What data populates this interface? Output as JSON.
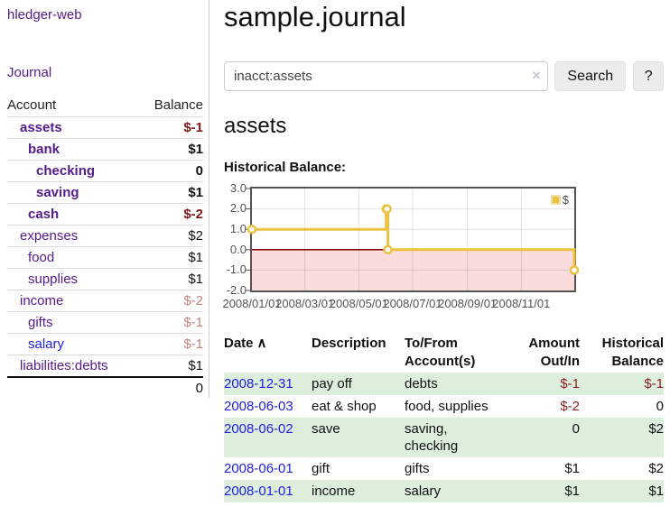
{
  "colors": {
    "accent_purple": "#551a8b",
    "link_blue": "#2121dd",
    "negative_strong": "#7d1616",
    "negative_table": "#8b1e1e",
    "negative_soft": "#c28383",
    "row_highlight": "#ddeedd",
    "chart_line": "#edc240",
    "chart_negative_fill": "#fbdcdc",
    "chart_zero_line": "#8b0000",
    "chart_border": "#545454",
    "chart_text": "#545454",
    "grid_line": "#dedede"
  },
  "sidebar": {
    "app_title": "hledger-web",
    "journal_link": "Journal",
    "accounts_table": {
      "headers": {
        "account": "Account",
        "balance": "Balance"
      },
      "rows": [
        {
          "account": "assets",
          "balance": "$-1",
          "indent": 1,
          "bold": true,
          "negative": true
        },
        {
          "account": "bank",
          "balance": "$1",
          "indent": 2,
          "bold": true,
          "negative": false
        },
        {
          "account": "checking",
          "balance": "0",
          "indent": 3,
          "bold": true,
          "negative": false
        },
        {
          "account": "saving",
          "balance": "$1",
          "indent": 3,
          "bold": true,
          "negative": false
        },
        {
          "account": "cash",
          "balance": "$-2",
          "indent": 2,
          "bold": true,
          "negative": true
        },
        {
          "account": "expenses",
          "balance": "$2",
          "indent": 1,
          "bold": false,
          "negative": false
        },
        {
          "account": "food",
          "balance": "$1",
          "indent": 2,
          "bold": false,
          "negative": false
        },
        {
          "account": "supplies",
          "balance": "$1",
          "indent": 2,
          "bold": false,
          "negative": false
        },
        {
          "account": "income",
          "balance": "$-2",
          "indent": 1,
          "bold": false,
          "negative": true
        },
        {
          "account": "gifts",
          "balance": "$-1",
          "indent": 2,
          "bold": false,
          "negative": true
        },
        {
          "account": "salary",
          "balance": "$-1",
          "indent": 2,
          "bold": false,
          "negative": true,
          "link_color": "blue"
        },
        {
          "account": "liabilities:debts",
          "balance": "$1",
          "indent": 1,
          "bold": false,
          "negative": false
        }
      ],
      "total": "0"
    }
  },
  "header": {
    "title": "sample.journal"
  },
  "search": {
    "value": "inacct:assets",
    "clear_icon": "×",
    "button_label": "Search",
    "help_label": "?"
  },
  "account_page": {
    "heading": "assets",
    "chart_title": "Historical Balance:"
  },
  "chart_data": {
    "type": "line",
    "step": true,
    "title": "Historical Balance:",
    "xlim": [
      "2008-01-01",
      "2008-12-31"
    ],
    "ylim": [
      -2,
      3
    ],
    "grid": true,
    "legend": {
      "label": "$",
      "position": "top-right"
    },
    "negative_region": {
      "from": 0,
      "to": -2
    },
    "series": [
      {
        "name": "$",
        "points": [
          {
            "x": "2008-01-01",
            "y": 1
          },
          {
            "x": "2008-06-01",
            "y": 2
          },
          {
            "x": "2008-06-02",
            "y": 2
          },
          {
            "x": "2008-06-03",
            "y": 0
          },
          {
            "x": "2008-12-31",
            "y": -1
          }
        ]
      }
    ],
    "yticks": [
      {
        "label": "3.0",
        "value": 3
      },
      {
        "label": "2.0",
        "value": 2
      },
      {
        "label": "1.0",
        "value": 1
      },
      {
        "label": "0.0",
        "value": 0
      },
      {
        "label": "-1.0",
        "value": -1
      },
      {
        "label": "-2.0",
        "value": -2
      }
    ],
    "xticks": [
      {
        "label": "2008/01/01",
        "value": "2008-01-01"
      },
      {
        "label": "2008/03/01",
        "value": "2008-03-01"
      },
      {
        "label": "2008/05/01",
        "value": "2008-05-01"
      },
      {
        "label": "2008/07/01",
        "value": "2008-07-01"
      },
      {
        "label": "2008/09/01",
        "value": "2008-09-01"
      },
      {
        "label": "2008/11/01",
        "value": "2008-11-01"
      }
    ]
  },
  "transactions_table": {
    "headers": [
      {
        "label": "Date",
        "sort_indicator": "∧",
        "align": "left"
      },
      {
        "label": "Description",
        "align": "left"
      },
      {
        "label": "To/From Account(s)",
        "align": "left"
      },
      {
        "label": "Amount Out/In",
        "align": "right"
      },
      {
        "label": "Historical Balance",
        "align": "right"
      }
    ],
    "rows": [
      {
        "date": "2008-12-31",
        "description": "pay off",
        "accounts": "debts",
        "amount": "$-1",
        "amount_negative": true,
        "balance": "$-1",
        "balance_negative": true,
        "highlight": true
      },
      {
        "date": "2008-06-03",
        "description": "eat & shop",
        "accounts": "food, supplies",
        "amount": "$-2",
        "amount_negative": true,
        "balance": "0",
        "balance_negative": false,
        "highlight": false
      },
      {
        "date": "2008-06-02",
        "description": "save",
        "accounts": "saving, checking",
        "amount": "0",
        "amount_negative": false,
        "balance": "$2",
        "balance_negative": false,
        "highlight": true
      },
      {
        "date": "2008-06-01",
        "description": "gift",
        "accounts": "gifts",
        "amount": "$1",
        "amount_negative": false,
        "balance": "$2",
        "balance_negative": false,
        "highlight": false
      },
      {
        "date": "2008-01-01",
        "description": "income",
        "accounts": "salary",
        "amount": "$1",
        "amount_negative": false,
        "balance": "$1",
        "balance_negative": false,
        "highlight": true
      }
    ]
  }
}
